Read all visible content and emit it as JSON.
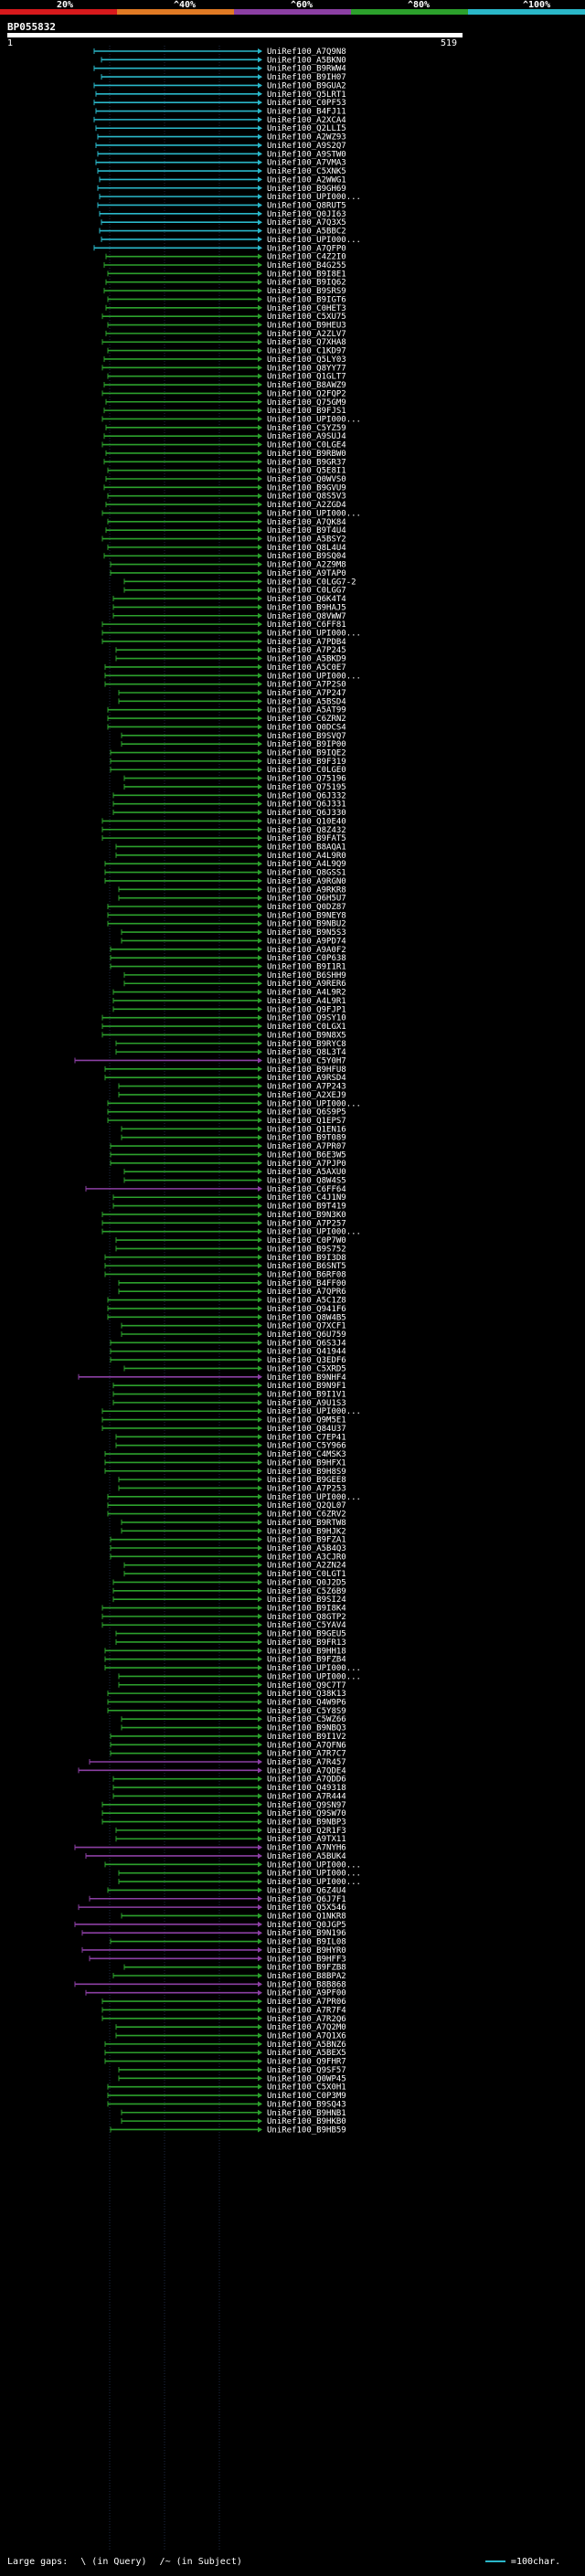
{
  "legend": {
    "labels": [
      "20%",
      "^40%",
      "^60%",
      "^80%",
      "^100%"
    ],
    "colors": [
      "#d7191c",
      "#e07a24",
      "#8b3fa3",
      "#2ca02c",
      "#2ab7c9"
    ]
  },
  "query": {
    "id": "BP055832",
    "start": "1",
    "end": "519"
  },
  "hits": [
    "UniRef100_A7Q9N8",
    "UniRef100_A5BKN0",
    "UniRef100_B9RWW4",
    "UniRef100_B9IH07",
    "UniRef100_B9GUA2",
    "UniRef100_Q5LRT1",
    "UniRef100_C0PF53",
    "UniRef100_B4FJ11",
    "UniRef100_A2XCA4",
    "UniRef100_Q2LLI5",
    "UniRef100_A2WZ93",
    "UniRef100_A9S2Q7",
    "UniRef100_A9STW0",
    "UniRef100_A7VMA3",
    "UniRef100_C5XNK5",
    "UniRef100_A2WWG1",
    "UniRef100_B9GH69",
    "UniRef100_UPI000...",
    "UniRef100_Q8RUT5",
    "UniRef100_Q0JI63",
    "UniRef100_A7Q3X5",
    "UniRef100_A5BBC2",
    "UniRef100_UPI000...",
    "UniRef100_A7QFP0",
    "UniRef100_C4Z2I0",
    "UniRef100_B4G255",
    "UniRef100_B9I8E1",
    "UniRef100_B9IQ62",
    "UniRef100_B9SRS9",
    "UniRef100_B9IGT6",
    "UniRef100_C0HET3",
    "UniRef100_C5XU75",
    "UniRef100_B9HEU3",
    "UniRef100_A2ZLV7",
    "UniRef100_Q7XHA8",
    "UniRef100_C1KD97",
    "UniRef100_Q5LY03",
    "UniRef100_Q8YY77",
    "UniRef100_Q1GLT7",
    "UniRef100_B8AWZ9",
    "UniRef100_Q2FQP2",
    "UniRef100_Q75GM9",
    "UniRef100_B9FJS1",
    "UniRef100_UPI000...",
    "UniRef100_C5YZ59",
    "UniRef100_A9SUJ4",
    "UniRef100_C0LGE4",
    "UniRef100_B9RBW0",
    "UniRef100_B9GR37",
    "UniRef100_Q5E8I1",
    "UniRef100_Q0WVS0",
    "UniRef100_B9GVU9",
    "UniRef100_Q8S5V3",
    "UniRef100_A2ZGD4",
    "UniRef100_UPI000...",
    "UniRef100_A7QK84",
    "UniRef100_B9T4U4",
    "UniRef100_A5BSY2",
    "UniRef100_Q8L4U4",
    "UniRef100_B9SQ04",
    "UniRef100_A2Z9M8",
    "UniRef100_A9TAP0",
    "UniRef100_C0LGG7-2",
    "UniRef100_C0LGG7",
    "UniRef100_Q6K4T4",
    "UniRef100_B9HAJ5",
    "UniRef100_Q8VWW7",
    "UniRef100_C6FF81",
    "UniRef100_UPI000...",
    "UniRef100_A7PDB4",
    "UniRef100_A7P245",
    "UniRef100_A5BKD9",
    "UniRef100_A5C0E7",
    "UniRef100_UPI000...",
    "UniRef100_A7P2S0",
    "UniRef100_A7P247",
    "UniRef100_A5BSD4",
    "UniRef100_A5AT99",
    "UniRef100_C6ZRN2",
    "UniRef100_Q0DCS4",
    "UniRef100_B9SVQ7",
    "UniRef100_B9IP00",
    "UniRef100_B9IQE2",
    "UniRef100_B9F319",
    "UniRef100_C0LGE0",
    "UniRef100_Q75196",
    "UniRef100_Q75195",
    "UniRef100_Q6J332",
    "UniRef100_Q6J331",
    "UniRef100_Q6J330",
    "UniRef100_Q10E40",
    "UniRef100_Q8Z432",
    "UniRef100_B9FAT5",
    "UniRef100_B8AQA1",
    "UniRef100_A4L9R0",
    "UniRef100_A4L9Q9",
    "UniRef100_Q8GSS1",
    "UniRef100_A9RGN0",
    "UniRef100_A9RKR8",
    "UniRef100_Q6H5U7",
    "UniRef100_Q0DZ87",
    "UniRef100_B9NEY8",
    "UniRef100_B9NBU2",
    "UniRef100_B9N5S3",
    "UniRef100_A9PD74",
    "UniRef100_A9A0F2",
    "UniRef100_C0P638",
    "UniRef100_B9I1R1",
    "UniRef100_B6SHH9",
    "UniRef100_A9RER6",
    "UniRef100_A4L9R2",
    "UniRef100_A4L9R1",
    "UniRef100_Q9FJP1",
    "UniRef100_Q9SY10",
    "UniRef100_C0LGX1",
    "UniRef100_B9N8X5",
    "UniRef100_B9RYC8",
    "UniRef100_Q8L3T4",
    "UniRef100_C5Y0H7",
    "UniRef100_B9HFU8",
    "UniRef100_A9RSD4",
    "UniRef100_A7P243",
    "UniRef100_A2XEJ9",
    "UniRef100_UPI000...",
    "UniRef100_Q6S9P5",
    "UniRef100_Q1EPS7",
    "UniRef100_Q1EN16",
    "UniRef100_B9T089",
    "UniRef100_A7PR07",
    "UniRef100_B6E3W5",
    "UniRef100_A7PJP0",
    "UniRef100_A5AXU0",
    "UniRef100_Q8W4S5",
    "UniRef100_C6FF64",
    "UniRef100_C4J1N9",
    "UniRef100_B9T419",
    "UniRef100_B9N3K0",
    "UniRef100_A7P257",
    "UniRef100_UPI000...",
    "UniRef100_C0P7W0",
    "UniRef100_B9S752",
    "UniRef100_B9I3D8",
    "UniRef100_B6SNT5",
    "UniRef100_B6RF08",
    "UniRef100_B4FF00",
    "UniRef100_A7QPR6",
    "UniRef100_A5C1Z8",
    "UniRef100_Q941F6",
    "UniRef100_Q8W4B5",
    "UniRef100_Q7XCF1",
    "UniRef100_Q6U759",
    "UniRef100_Q6S3J4",
    "UniRef100_Q41944",
    "UniRef100_Q3EDF6",
    "UniRef100_C5XRD5",
    "UniRef100_B9NHF4",
    "UniRef100_B9N9F1",
    "UniRef100_B9I1V1",
    "UniRef100_A9U1S3",
    "UniRef100_UPI000...",
    "UniRef100_Q9M5E1",
    "UniRef100_Q84U37",
    "UniRef100_C7EP41",
    "UniRef100_C5Y966",
    "UniRef100_C4MSK3",
    "UniRef100_B9HFX1",
    "UniRef100_B9H8S9",
    "UniRef100_B9GEE8",
    "UniRef100_A7P253",
    "UniRef100_UPI000...",
    "UniRef100_Q2QL07",
    "UniRef100_C6ZRV2",
    "UniRef100_B9RTW8",
    "UniRef100_B9HJK2",
    "UniRef100_B9FZA1",
    "UniRef100_A5B4Q3",
    "UniRef100_A3CJR0",
    "UniRef100_A2ZN24",
    "UniRef100_C0LGT1",
    "UniRef100_Q0J2D5",
    "UniRef100_C5Z6B9",
    "UniRef100_B9SI24",
    "UniRef100_B9I8K4",
    "UniRef100_Q8GTP2",
    "UniRef100_C5YAV4",
    "UniRef100_B9GEU5",
    "UniRef100_B9FR13",
    "UniRef100_B9HH18",
    "UniRef100_B9FZB4",
    "UniRef100_UPI000...",
    "UniRef100_UPI000...",
    "UniRef100_Q9C7T7",
    "UniRef100_Q38K13",
    "UniRef100_Q4W9P6",
    "UniRef100_C5Y8S9",
    "UniRef100_C5WZ66",
    "UniRef100_B9NBQ3",
    "UniRef100_B9I1V2",
    "UniRef100_A7QFN6",
    "UniRef100_A7R7C7",
    "UniRef100_A7R457",
    "UniRef100_A7QDE4",
    "UniRef100_A7QDD6",
    "UniRef100_Q49318",
    "UniRef100_A7R444",
    "UniRef100_Q9SN97",
    "UniRef100_Q9SW70",
    "UniRef100_B9NBP3",
    "UniRef100_Q2R1F3",
    "UniRef100_A9TX11",
    "UniRef100_A7NYH6",
    "UniRef100_A5BUK4",
    "UniRef100_UPI000...",
    "UniRef100_UPI000...",
    "UniRef100_UPI000...",
    "UniRef100_Q6Z4U4",
    "UniRef100_Q6J7F1",
    "UniRef100_Q5X546",
    "UniRef100_Q1NKR8",
    "UniRef100_Q0JGP5",
    "UniRef100_B9N196",
    "UniRef100_B9IL08",
    "UniRef100_B9HYR0",
    "UniRef100_B9HFF3",
    "UniRef100_B9FZB8",
    "UniRef100_B8BPA2",
    "UniRef100_B8B868",
    "UniRef100_A9PF00",
    "UniRef100_A7PR06",
    "UniRef100_A7R7F4",
    "UniRef100_A7R2Q6",
    "UniRef100_A7Q2M0",
    "UniRef100_A7Q1X6",
    "UniRef100_A5BNZ6",
    "UniRef100_A5BEX5",
    "UniRef100_Q9FHR7",
    "UniRef100_Q9SF57",
    "UniRef100_Q0WP45",
    "UniRef100_C5X0H1",
    "UniRef100_C0P3M9",
    "UniRef100_B9SQ43",
    "UniRef100_B9HNB1",
    "UniRef100_B9HKB0",
    "UniRef100_B9HB59"
  ],
  "footer": {
    "large_gaps_label": "Large gaps:",
    "query_gap_text": "\\ (in Query)",
    "subject_gap_text": "/~ (in Subject)",
    "scale_label": "=100char."
  }
}
